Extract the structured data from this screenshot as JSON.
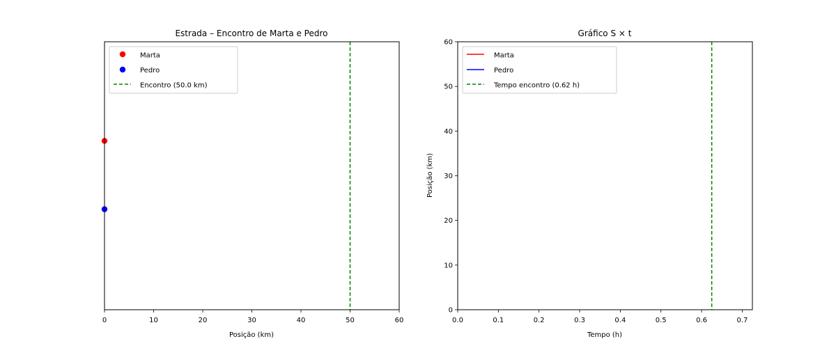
{
  "chart_data": [
    {
      "type": "scatter",
      "title": "Estrada – Encontro de Marta e Pedro",
      "xlabel": "Posição (km)",
      "ylabel": "",
      "xlim": [
        0,
        60
      ],
      "ylim": [
        0,
        1
      ],
      "xticks": [
        0,
        10,
        20,
        30,
        40,
        50,
        60
      ],
      "yticks_visible": false,
      "grid": false,
      "legend_position": "top-left",
      "series": [
        {
          "name": "Marta",
          "x": [
            0
          ],
          "y": [
            0.63
          ],
          "color": "#ff0000",
          "marker": "circle"
        },
        {
          "name": "Pedro",
          "x": [
            0
          ],
          "y": [
            0.375
          ],
          "color": "#0000ff",
          "marker": "circle"
        }
      ],
      "vlines": [
        {
          "name": "Encontro (50.0 km)",
          "x": 50,
          "color": "#008000",
          "style": "dashed"
        }
      ]
    },
    {
      "type": "line",
      "title": "Gráfico S × t",
      "xlabel": "Tempo (h)",
      "ylabel": "Posição (km)",
      "xlim": [
        0,
        0.725
      ],
      "ylim": [
        0,
        60
      ],
      "xticks": [
        0.0,
        0.1,
        0.2,
        0.3,
        0.4,
        0.5,
        0.6,
        0.7
      ],
      "yticks": [
        0,
        10,
        20,
        30,
        40,
        50,
        60
      ],
      "grid": false,
      "legend_position": "top-left",
      "series": [
        {
          "name": "Marta",
          "x": [],
          "y": [],
          "color": "#ff0000"
        },
        {
          "name": "Pedro",
          "x": [],
          "y": [],
          "color": "#0000ff"
        }
      ],
      "vlines": [
        {
          "name": "Tempo encontro (0.62 h)",
          "x": 0.625,
          "color": "#008000",
          "style": "dashed"
        }
      ]
    }
  ]
}
